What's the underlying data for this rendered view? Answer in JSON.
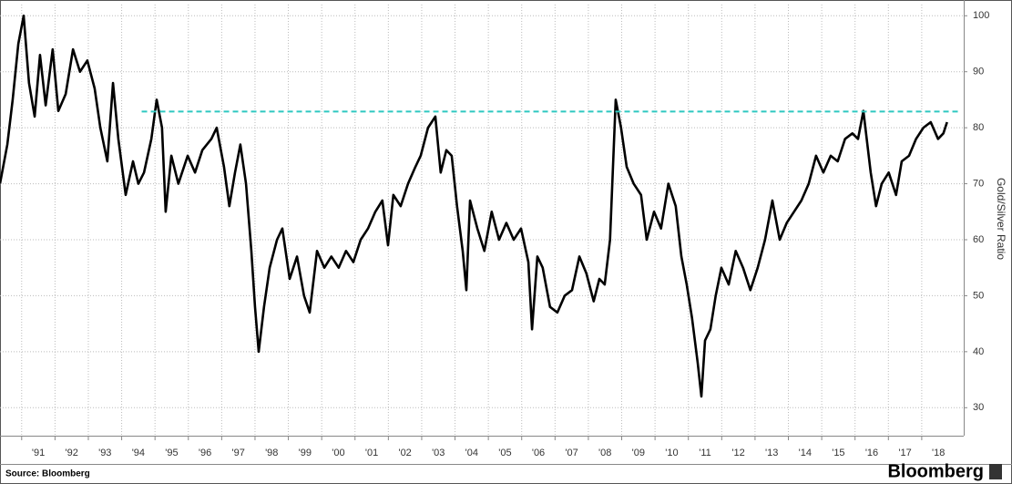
{
  "chart_data": {
    "type": "line",
    "y_label": "Gold/Silver Ratio",
    "source": "Source: Bloomberg",
    "brand": "Bloomberg",
    "color": "#000000",
    "x": [
      1990.35,
      1990.57,
      1990.73,
      1990.9,
      1991.06,
      1991.22,
      1991.39,
      1991.55,
      1991.72,
      1991.93,
      1992.1,
      1992.32,
      1992.54,
      1992.75,
      1992.97,
      1993.19,
      1993.36,
      1993.57,
      1993.74,
      1993.9,
      1994.12,
      1994.34,
      1994.5,
      1994.67,
      1994.89,
      1995.05,
      1995.21,
      1995.32,
      1995.49,
      1995.7,
      1995.98,
      1996.2,
      1996.42,
      1996.69,
      1996.85,
      1997.07,
      1997.23,
      1997.4,
      1997.56,
      1997.73,
      1997.89,
      1998.0,
      1998.11,
      1998.27,
      1998.44,
      1998.66,
      1998.82,
      1999.04,
      1999.26,
      1999.47,
      1999.64,
      1999.86,
      2000.08,
      2000.29,
      2000.51,
      2000.73,
      2000.95,
      2001.17,
      2001.39,
      2001.61,
      2001.82,
      2001.99,
      2002.15,
      2002.37,
      2002.59,
      2002.81,
      2002.97,
      2003.19,
      2003.41,
      2003.57,
      2003.74,
      2003.9,
      2004.06,
      2004.23,
      2004.34,
      2004.45,
      2004.67,
      2004.88,
      2005.1,
      2005.32,
      2005.54,
      2005.76,
      2005.98,
      2006.2,
      2006.31,
      2006.47,
      2006.63,
      2006.85,
      2007.07,
      2007.29,
      2007.51,
      2007.73,
      2007.94,
      2008.16,
      2008.33,
      2008.49,
      2008.65,
      2008.82,
      2008.98,
      2009.15,
      2009.36,
      2009.58,
      2009.75,
      2009.97,
      2010.18,
      2010.4,
      2010.62,
      2010.79,
      2010.95,
      2011.11,
      2011.28,
      2011.39,
      2011.5,
      2011.66,
      2011.82,
      2011.99,
      2012.21,
      2012.42,
      2012.64,
      2012.86,
      2013.08,
      2013.3,
      2013.52,
      2013.74,
      2013.95,
      2014.17,
      2014.39,
      2014.61,
      2014.83,
      2015.05,
      2015.27,
      2015.48,
      2015.7,
      2015.92,
      2016.09,
      2016.25,
      2016.47,
      2016.63,
      2016.8,
      2017.01,
      2017.23,
      2017.4,
      2017.62,
      2017.83,
      2018.05,
      2018.27,
      2018.49,
      2018.65,
      2018.76
    ],
    "values": [
      70,
      77,
      85,
      95,
      100,
      88,
      82,
      93,
      84,
      94,
      83,
      86,
      94,
      90,
      92,
      87,
      80,
      74,
      88,
      78,
      68,
      74,
      70,
      72,
      78,
      85,
      80,
      65,
      75,
      70,
      75,
      72,
      76,
      78,
      80,
      73,
      66,
      72,
      77,
      70,
      58,
      48,
      40,
      48,
      55,
      60,
      62,
      53,
      57,
      50,
      47,
      58,
      55,
      57,
      55,
      58,
      56,
      60,
      62,
      65,
      67,
      59,
      68,
      66,
      70,
      73,
      75,
      80,
      82,
      72,
      76,
      75,
      66,
      58,
      51,
      67,
      62,
      58,
      65,
      60,
      63,
      60,
      62,
      56,
      44,
      57,
      55,
      48,
      47,
      50,
      51,
      57,
      54,
      49,
      53,
      52,
      60,
      85,
      80,
      73,
      70,
      68,
      60,
      65,
      62,
      70,
      66,
      57,
      52,
      46,
      38,
      32,
      42,
      44,
      50,
      55,
      52,
      58,
      55,
      51,
      55,
      60,
      67,
      60,
      63,
      65,
      67,
      70,
      75,
      72,
      75,
      74,
      78,
      79,
      78,
      83,
      72,
      66,
      70,
      72,
      68,
      74,
      75,
      78,
      80,
      81,
      78,
      79,
      81
    ],
    "xlim": [
      1990.35,
      2019.26
    ],
    "xticks": [
      {
        "value": 1991,
        "label": "'91"
      },
      {
        "value": 1992,
        "label": "'92"
      },
      {
        "value": 1993,
        "label": "'93"
      },
      {
        "value": 1994,
        "label": "'94"
      },
      {
        "value": 1995,
        "label": "'95"
      },
      {
        "value": 1996,
        "label": "'96"
      },
      {
        "value": 1997,
        "label": "'97"
      },
      {
        "value": 1998,
        "label": "'98"
      },
      {
        "value": 1999,
        "label": "'99"
      },
      {
        "value": 2000,
        "label": "'00"
      },
      {
        "value": 2001,
        "label": "'01"
      },
      {
        "value": 2002,
        "label": "'02"
      },
      {
        "value": 2003,
        "label": "'03"
      },
      {
        "value": 2004,
        "label": "'04"
      },
      {
        "value": 2005,
        "label": "'05"
      },
      {
        "value": 2006,
        "label": "'06"
      },
      {
        "value": 2007,
        "label": "'07"
      },
      {
        "value": 2008,
        "label": "'08"
      },
      {
        "value": 2009,
        "label": "'09"
      },
      {
        "value": 2010,
        "label": "'10"
      },
      {
        "value": 2011,
        "label": "'11"
      },
      {
        "value": 2012,
        "label": "'12"
      },
      {
        "value": 2013,
        "label": "'13"
      },
      {
        "value": 2014,
        "label": "'14"
      },
      {
        "value": 2015,
        "label": "'15"
      },
      {
        "value": 2016,
        "label": "'16"
      },
      {
        "value": 2017,
        "label": "'17"
      },
      {
        "value": 2018,
        "label": "'18"
      }
    ],
    "ylim": [
      25,
      102
    ],
    "yticks": [
      30,
      40,
      50,
      60,
      70,
      80,
      90,
      100
    ],
    "grid": true,
    "reference_line": {
      "value": 82.9,
      "color": "#2ec8c0"
    }
  }
}
